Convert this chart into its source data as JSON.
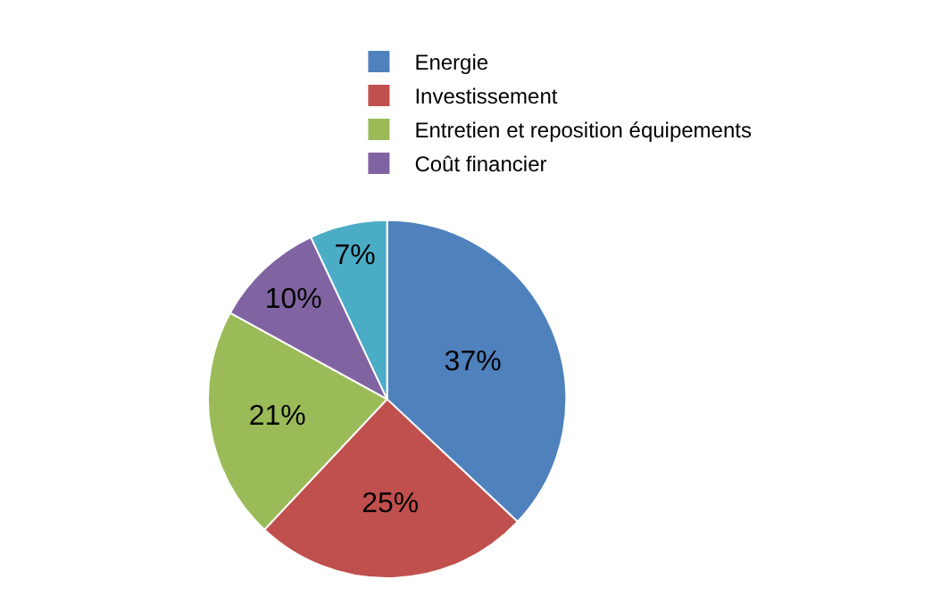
{
  "chart_data": {
    "type": "pie",
    "categories": [
      "Energie",
      "Investissement",
      "Entretien et reposition équipements",
      "Coût financier",
      null
    ],
    "values": [
      37,
      25,
      21,
      10,
      7
    ],
    "colors": [
      "#4f81bd",
      "#c0504d",
      "#9bbb59",
      "#8064a2",
      "#4bacc6"
    ],
    "value_labels": [
      "37%",
      "25%",
      "21%",
      "10%",
      "7%"
    ],
    "legend": "top right"
  }
}
